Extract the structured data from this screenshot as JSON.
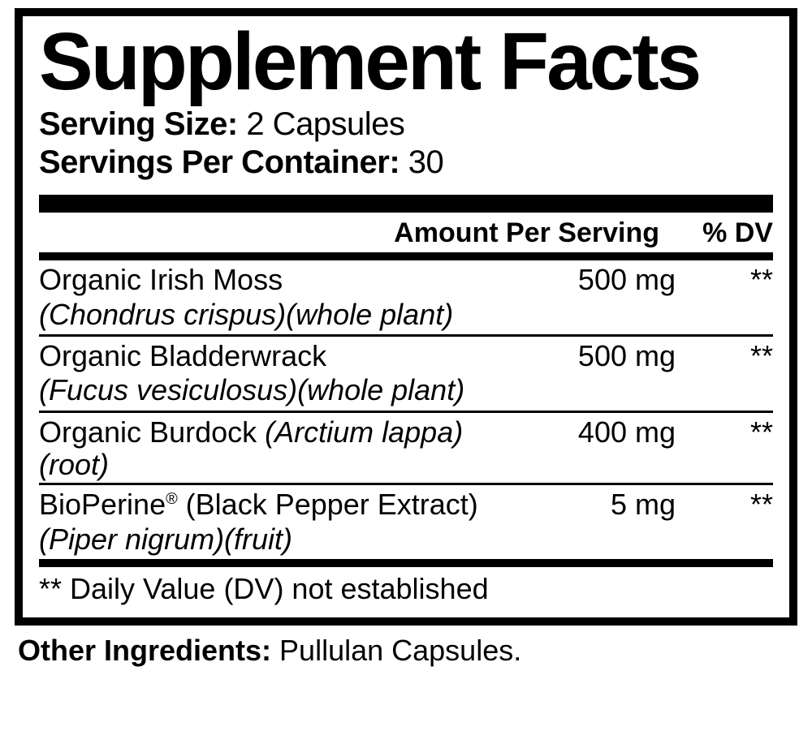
{
  "colors": {
    "background": "#ffffff",
    "text": "#000000",
    "border": "#000000",
    "rule": "#000000"
  },
  "title": "Supplement Facts",
  "serving": {
    "size_label": "Serving Size:",
    "size_value": " 2 Capsules",
    "per_container_label": "Servings Per Container:",
    "per_container_value": " 30"
  },
  "column_headers": {
    "amount": "Amount Per Serving",
    "dv": "% DV"
  },
  "rows": [
    {
      "name_line1": "Organic Irish Moss",
      "name_line2": "(Chondrus crispus)(whole plant)",
      "amount": "500 mg",
      "dv": "**",
      "latin_inline": false
    },
    {
      "name_line1": "Organic Bladderwrack",
      "name_line2": "(Fucus vesiculosus)(whole plant)",
      "amount": "500 mg",
      "dv": "**",
      "latin_inline": false
    },
    {
      "name_line1": "Organic Burdock ",
      "latin_suffix": "(Arctium lappa)(root)",
      "name_line2": "",
      "amount": "400 mg",
      "dv": "**",
      "latin_inline": true
    },
    {
      "name_line1_pre": "BioPerine",
      "name_line1_sup": "®",
      "name_line1_post": " (Black Pepper Extract)",
      "name_line2": "(Piper nigrum)(fruit)",
      "amount": "5 mg",
      "dv": "**",
      "latin_inline": false,
      "has_sup": true
    }
  ],
  "note": "** Daily Value (DV) not established",
  "other": {
    "label": "Other Ingredients:",
    "value": " Pullulan Capsules."
  }
}
